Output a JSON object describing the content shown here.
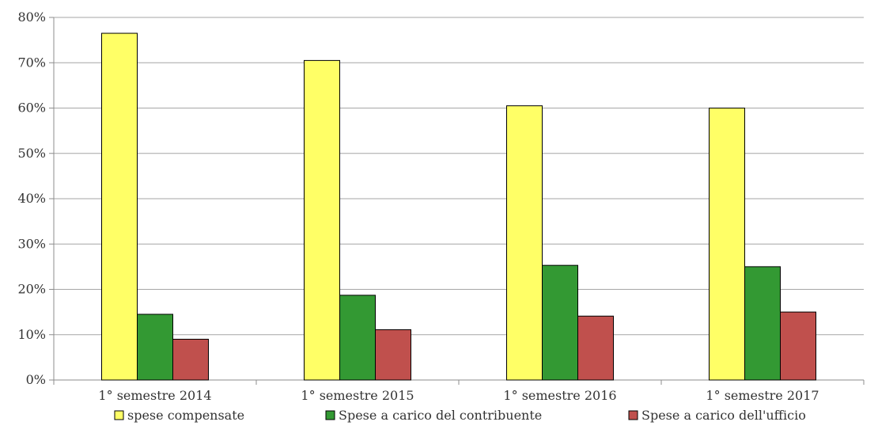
{
  "chart_data": {
    "type": "bar",
    "categories": [
      "1° semestre 2014",
      "1° semestre 2015",
      "1° semestre 2016",
      "1° semestre 2017"
    ],
    "series": [
      {
        "name": "spese compensate",
        "color": "#FFFF66",
        "values": [
          76.5,
          70.5,
          60.5,
          60.0
        ]
      },
      {
        "name": "Spese a carico del contribuente",
        "color": "#339933",
        "values": [
          14.5,
          18.7,
          25.3,
          25.0
        ]
      },
      {
        "name": "Spese a carico dell'ufficio",
        "color": "#C0504D",
        "values": [
          9.0,
          11.1,
          14.1,
          15.0
        ]
      }
    ],
    "ylim": [
      0,
      80
    ],
    "yticks": [
      "0%",
      "10%",
      "20%",
      "30%",
      "40%",
      "50%",
      "60%",
      "70%",
      "80%"
    ],
    "y_unit": "percent",
    "grid": true,
    "legend_position": "bottom",
    "title": "",
    "xlabel": "",
    "ylabel": ""
  }
}
